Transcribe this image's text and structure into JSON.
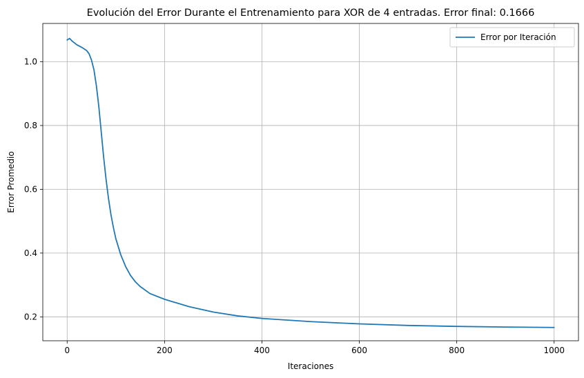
{
  "chart_data": {
    "type": "line",
    "title": "Evolución del Error Durante el Entrenamiento para XOR de 4 entradas. Error final: 0.1666",
    "xlabel": "Iteraciones",
    "ylabel": "Error Promedio",
    "xlim": [
      -50,
      1050
    ],
    "ylim": [
      0.125,
      1.12
    ],
    "xticks": [
      0,
      200,
      400,
      600,
      800,
      1000
    ],
    "yticks": [
      0.2,
      0.4,
      0.6,
      0.8,
      1.0
    ],
    "xtick_labels": [
      "0",
      "200",
      "400",
      "600",
      "800",
      "1000"
    ],
    "ytick_labels": [
      "0.2",
      "0.4",
      "0.6",
      "0.8",
      "1.0"
    ],
    "grid": true,
    "legend": "top-right",
    "series": [
      {
        "name": "Error por Iteración",
        "color": "#1f77b4",
        "x": [
          0,
          5,
          10,
          20,
          30,
          40,
          45,
          50,
          55,
          60,
          65,
          70,
          75,
          80,
          85,
          90,
          95,
          100,
          110,
          120,
          130,
          140,
          150,
          170,
          200,
          250,
          300,
          350,
          400,
          500,
          600,
          700,
          800,
          900,
          1000
        ],
        "y": [
          1.068,
          1.073,
          1.065,
          1.053,
          1.045,
          1.035,
          1.025,
          1.005,
          0.975,
          0.925,
          0.86,
          0.78,
          0.7,
          0.63,
          0.57,
          0.52,
          0.48,
          0.445,
          0.395,
          0.358,
          0.33,
          0.31,
          0.295,
          0.273,
          0.255,
          0.232,
          0.215,
          0.203,
          0.195,
          0.185,
          0.178,
          0.173,
          0.17,
          0.168,
          0.1666
        ]
      }
    ]
  }
}
